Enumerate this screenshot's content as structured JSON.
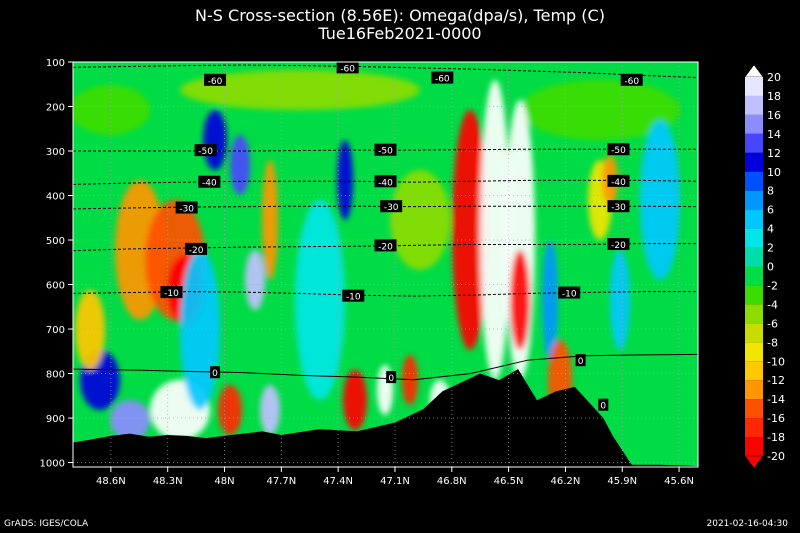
{
  "chart_data": {
    "type": "heatmap",
    "title": "N-S Cross-section (8.56E): Omega(dpa/s), Temp (C)",
    "subtitle": "Tue16Feb2021-0000",
    "xlabel": "",
    "ylabel": "",
    "x_ticks": [
      "48.6N",
      "48.3N",
      "48N",
      "47.7N",
      "47.4N",
      "47.1N",
      "46.8N",
      "46.5N",
      "46.2N",
      "45.9N",
      "45.6N"
    ],
    "x_tick_values": [
      48.6,
      48.3,
      48.0,
      47.7,
      47.4,
      47.1,
      46.8,
      46.5,
      46.2,
      45.9,
      45.6
    ],
    "xlim": [
      48.8,
      45.5
    ],
    "y_ticks": [
      "100",
      "200",
      "300",
      "400",
      "500",
      "600",
      "700",
      "800",
      "900",
      "1000"
    ],
    "y_tick_values": [
      100,
      200,
      300,
      400,
      500,
      600,
      700,
      800,
      900,
      1000
    ],
    "ylim": [
      100,
      1010
    ],
    "grid": true,
    "colorbar": {
      "labels": [
        "20",
        "18",
        "16",
        "14",
        "12",
        "10",
        "8",
        "6",
        "4",
        "2",
        "0",
        "-2",
        "-4",
        "-6",
        "-8",
        "-10",
        "-12",
        "-14",
        "-16",
        "-18",
        "-20"
      ],
      "values": [
        20,
        18,
        16,
        14,
        12,
        10,
        8,
        6,
        4,
        2,
        0,
        -2,
        -4,
        -6,
        -8,
        -10,
        -12,
        -14,
        -16,
        -18,
        -20
      ],
      "colors": [
        "#ffffff",
        "#e6e6ff",
        "#c0c0ff",
        "#8c8cff",
        "#4646ff",
        "#0000dc",
        "#0050ff",
        "#0096ff",
        "#00c8ff",
        "#00e6e6",
        "#00dcaa",
        "#00dc46",
        "#3cdc00",
        "#8cdc00",
        "#c8dc00",
        "#f0e600",
        "#ffc800",
        "#ff9600",
        "#ff5000",
        "#ff2800",
        "#ff0000"
      ]
    },
    "temperature_contours": [
      {
        "label": "-60",
        "y": [
          112,
          110,
          108,
          107,
          108,
          110,
          113,
          116,
          120,
          124,
          130,
          135
        ]
      },
      {
        "label": "-50",
        "y": [
          300,
          300,
          300,
          300,
          299,
          298,
          298,
          297,
          296,
          296,
          296,
          296
        ]
      },
      {
        "label": "-40",
        "y": [
          375,
          372,
          370,
          368,
          368,
          368,
          370,
          368,
          366,
          366,
          366,
          368
        ]
      },
      {
        "label": "-30",
        "y": [
          430,
          428,
          426,
          425,
          424,
          424,
          425,
          424,
          424,
          424,
          424,
          425
        ]
      },
      {
        "label": "-20",
        "y": [
          524,
          520,
          518,
          516,
          515,
          514,
          512,
          510,
          510,
          510,
          508,
          508
        ]
      },
      {
        "label": "-10",
        "y": [
          620,
          618,
          616,
          617,
          620,
          624,
          626,
          624,
          620,
          618,
          616,
          616
        ]
      },
      {
        "label": "0",
        "y": [
          790,
          792,
          795,
          798,
          804,
          808,
          814,
          800,
          770,
          760,
          758,
          757
        ]
      }
    ],
    "contour_labels": [
      {
        "text": "-60",
        "lat": 48.05,
        "p": 140
      },
      {
        "text": "-60",
        "lat": 47.35,
        "p": 112
      },
      {
        "text": "-60",
        "lat": 46.85,
        "p": 135
      },
      {
        "text": "-60",
        "lat": 45.85,
        "p": 140
      },
      {
        "text": "-50",
        "lat": 48.1,
        "p": 298
      },
      {
        "text": "-50",
        "lat": 47.15,
        "p": 297
      },
      {
        "text": "-50",
        "lat": 45.92,
        "p": 296
      },
      {
        "text": "-40",
        "lat": 48.08,
        "p": 369
      },
      {
        "text": "-40",
        "lat": 47.15,
        "p": 368
      },
      {
        "text": "-40",
        "lat": 45.92,
        "p": 367
      },
      {
        "text": "-30",
        "lat": 48.2,
        "p": 427
      },
      {
        "text": "-30",
        "lat": 47.12,
        "p": 424
      },
      {
        "text": "-30",
        "lat": 45.92,
        "p": 424
      },
      {
        "text": "-20",
        "lat": 48.15,
        "p": 520
      },
      {
        "text": "-20",
        "lat": 47.15,
        "p": 512
      },
      {
        "text": "-20",
        "lat": 45.92,
        "p": 509
      },
      {
        "text": "-10",
        "lat": 48.28,
        "p": 617
      },
      {
        "text": "-10",
        "lat": 47.32,
        "p": 625
      },
      {
        "text": "-10",
        "lat": 46.18,
        "p": 618
      },
      {
        "text": "0",
        "lat": 48.05,
        "p": 797
      },
      {
        "text": "0",
        "lat": 47.12,
        "p": 808
      },
      {
        "text": "0",
        "lat": 46.12,
        "p": 770
      },
      {
        "text": "0",
        "lat": 46.0,
        "p": 870
      }
    ],
    "terrain_surface_hpa": [
      955,
      948,
      940,
      935,
      942,
      938,
      940,
      945,
      940,
      935,
      930,
      938,
      925,
      930,
      910,
      880,
      840,
      820,
      800,
      815,
      790,
      860,
      840,
      830,
      900,
      940,
      1005,
      1005,
      1008
    ],
    "terrain_lats": [
      48.8,
      48.7,
      48.6,
      48.5,
      48.4,
      48.3,
      48.2,
      48.1,
      48.0,
      47.9,
      47.8,
      47.7,
      47.5,
      47.3,
      47.1,
      46.95,
      46.85,
      46.75,
      46.65,
      46.55,
      46.45,
      46.35,
      46.25,
      46.15,
      46.0,
      45.95,
      45.85,
      45.7,
      45.5
    ]
  },
  "footer": {
    "left": "GrADS: IGES/COLA",
    "right": "2021-02-16-04:30"
  }
}
